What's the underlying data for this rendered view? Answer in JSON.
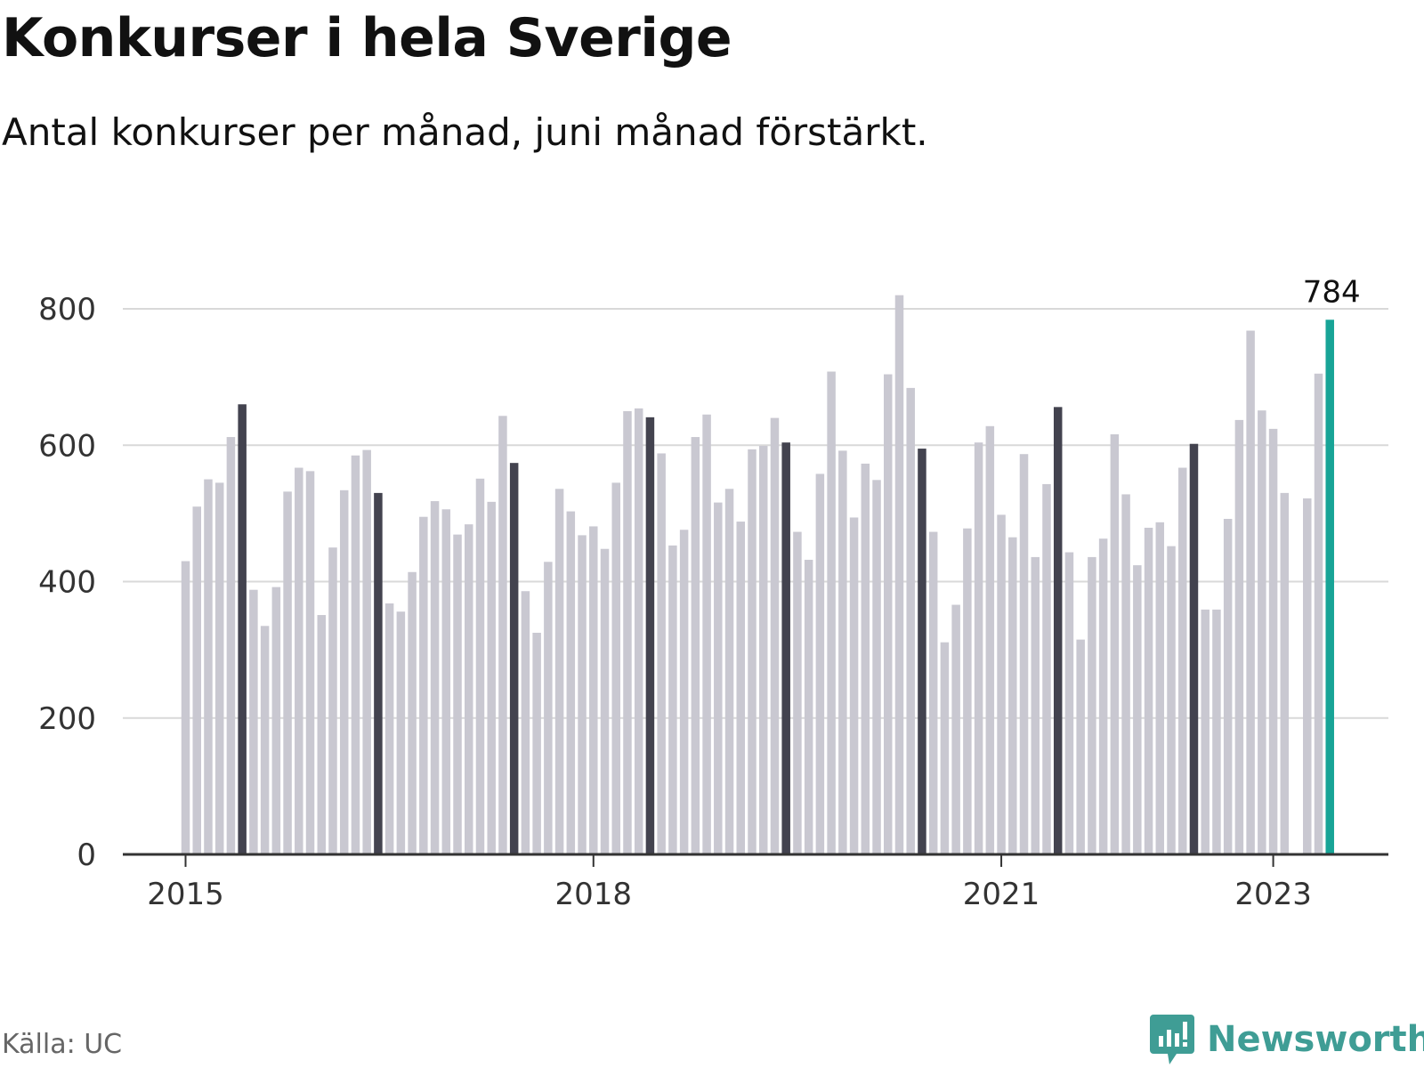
{
  "header": {
    "title": "Konkurser i hela Sverige",
    "subtitle": "Antal konkurser per månad, juni månad förstärkt."
  },
  "footer": {
    "source": "Källa: UC",
    "brand": "Newsworthy",
    "brand_icon": "newsworthy-logo-icon"
  },
  "colors": {
    "bar": "#c9c8d1",
    "june": "#43434f",
    "latest": "#18a497",
    "grid": "#d9d9d9",
    "axis": "#333333",
    "brand": "#3f9d95"
  },
  "chart_data": {
    "type": "bar",
    "title": "Konkurser i hela Sverige",
    "subtitle": "Antal konkurser per månad, juni månad förstärkt.",
    "xlabel": "",
    "ylabel": "",
    "ylim": [
      0,
      850
    ],
    "yticks": [
      0,
      200,
      400,
      600,
      800
    ],
    "xticks": [
      {
        "label": "2015",
        "date": "2015-01"
      },
      {
        "label": "2018",
        "date": "2018-01"
      },
      {
        "label": "2021",
        "date": "2021-01"
      },
      {
        "label": "2023",
        "date": "2023-01"
      }
    ],
    "grid": true,
    "start": "2015-01",
    "highlight": "June bars darker; latest month (2023-06) teal",
    "annotation": {
      "date": "2023-06",
      "text": "784"
    },
    "values": [
      430,
      510,
      550,
      545,
      612,
      660,
      388,
      335,
      392,
      532,
      567,
      562,
      351,
      450,
      534,
      585,
      593,
      530,
      368,
      356,
      414,
      495,
      518,
      506,
      469,
      484,
      551,
      517,
      643,
      574,
      386,
      325,
      429,
      536,
      503,
      468,
      481,
      448,
      545,
      650,
      654,
      641,
      588,
      453,
      476,
      612,
      645,
      516,
      536,
      488,
      594,
      599,
      640,
      604,
      473,
      432,
      558,
      708,
      592,
      494,
      573,
      549,
      704,
      820,
      684,
      595,
      473,
      311,
      366,
      478,
      604,
      628,
      498,
      465,
      587,
      436,
      543,
      656,
      443,
      315,
      436,
      463,
      616,
      528,
      424,
      479,
      487,
      452,
      567,
      602,
      359,
      359,
      492,
      637,
      768,
      651,
      624,
      530,
      null,
      522,
      705,
      784
    ]
  }
}
